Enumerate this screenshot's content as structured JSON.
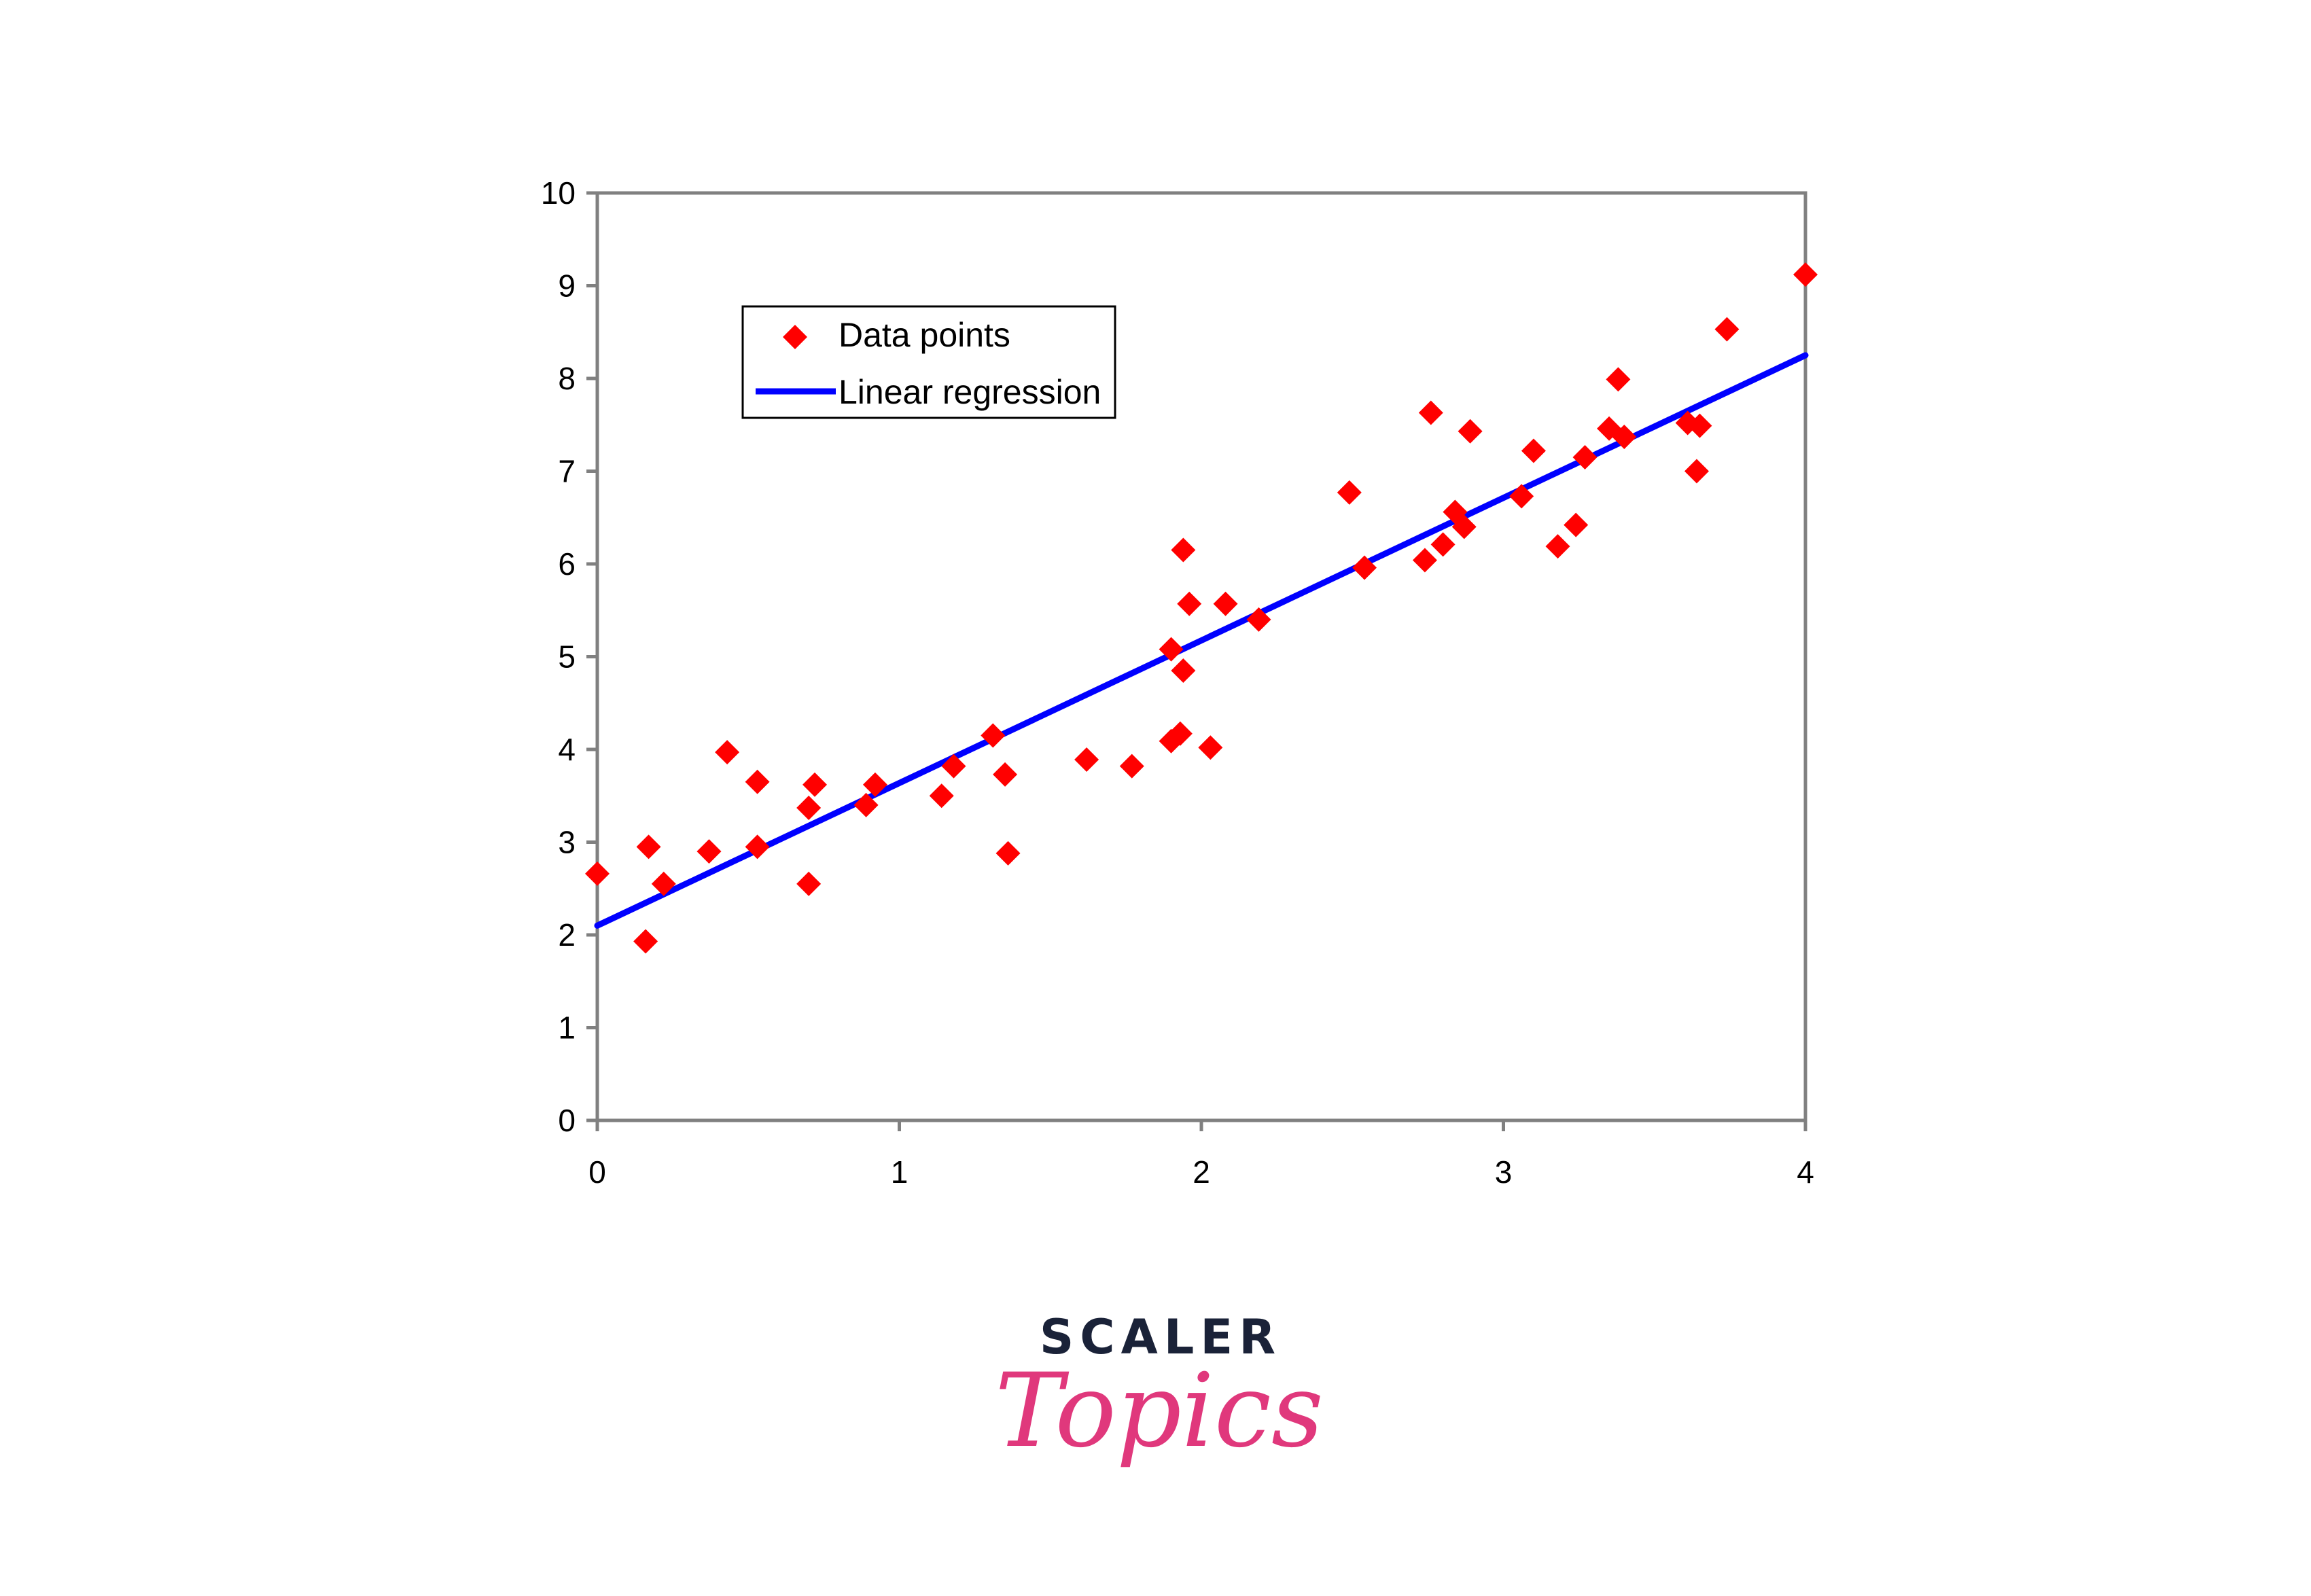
{
  "chart_data": {
    "type": "scatter",
    "title": "",
    "xlabel": "",
    "ylabel": "",
    "xlim": [
      0,
      4
    ],
    "ylim": [
      0,
      10
    ],
    "x_ticks": [
      "0",
      "1",
      "2",
      "3",
      "4"
    ],
    "y_ticks": [
      "0",
      "1",
      "2",
      "3",
      "4",
      "5",
      "6",
      "7",
      "8",
      "9",
      "10"
    ],
    "grid": false,
    "legend_placement": "top-left",
    "series": [
      {
        "name": "Data points",
        "kind": "scatter",
        "marker": "diamond",
        "color": "#ff0000",
        "points": [
          [
            0.0,
            2.66
          ],
          [
            0.17,
            2.95
          ],
          [
            0.16,
            1.93
          ],
          [
            0.22,
            2.55
          ],
          [
            0.37,
            2.9
          ],
          [
            0.43,
            3.97
          ],
          [
            0.53,
            2.95
          ],
          [
            0.53,
            3.65
          ],
          [
            0.7,
            3.37
          ],
          [
            0.7,
            2.55
          ],
          [
            0.72,
            3.62
          ],
          [
            0.89,
            3.4
          ],
          [
            0.92,
            3.62
          ],
          [
            1.14,
            3.5
          ],
          [
            1.18,
            3.82
          ],
          [
            1.31,
            4.15
          ],
          [
            1.35,
            3.73
          ],
          [
            1.36,
            2.88
          ],
          [
            1.62,
            3.89
          ],
          [
            1.77,
            3.82
          ],
          [
            1.9,
            4.09
          ],
          [
            1.9,
            5.08
          ],
          [
            1.93,
            4.17
          ],
          [
            1.94,
            4.85
          ],
          [
            1.94,
            6.15
          ],
          [
            1.96,
            5.57
          ],
          [
            2.03,
            4.02
          ],
          [
            2.08,
            5.57
          ],
          [
            2.19,
            5.4
          ],
          [
            2.49,
            6.77
          ],
          [
            2.54,
            5.96
          ],
          [
            2.74,
            6.04
          ],
          [
            2.76,
            7.63
          ],
          [
            2.8,
            6.21
          ],
          [
            2.84,
            6.56
          ],
          [
            2.87,
            6.4
          ],
          [
            2.89,
            7.43
          ],
          [
            3.06,
            6.73
          ],
          [
            3.1,
            7.22
          ],
          [
            3.18,
            6.19
          ],
          [
            3.24,
            6.42
          ],
          [
            3.27,
            7.15
          ],
          [
            3.35,
            7.46
          ],
          [
            3.38,
            7.99
          ],
          [
            3.4,
            7.37
          ],
          [
            3.61,
            7.52
          ],
          [
            3.64,
            7.0
          ],
          [
            3.65,
            7.49
          ],
          [
            3.74,
            8.53
          ],
          [
            4.0,
            9.12
          ]
        ]
      },
      {
        "name": "Linear regression",
        "kind": "line",
        "color": "#0000ff",
        "points": [
          [
            0,
            2.1
          ],
          [
            4,
            8.25
          ]
        ]
      }
    ]
  },
  "brand": {
    "top": "SCALER",
    "bottom": "Topics",
    "top_color": "#1a2238",
    "bottom_color": "#e0387c"
  }
}
